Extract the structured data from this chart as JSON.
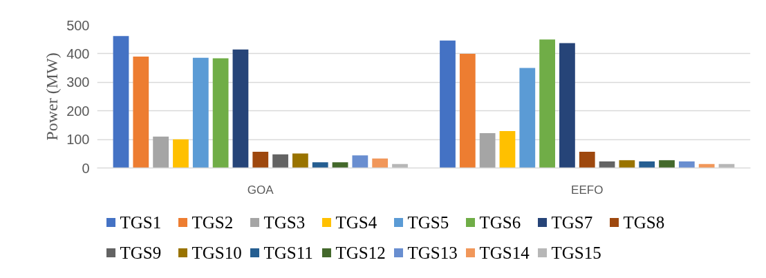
{
  "chart_data": {
    "type": "bar",
    "ylabel": "Power (MW)",
    "categories": [
      "GOA",
      "EEFO"
    ],
    "series": [
      {
        "name": "TGS1",
        "color": "#4472c4",
        "values": [
          462,
          446
        ]
      },
      {
        "name": "TGS2",
        "color": "#ed7d31",
        "values": [
          390,
          400
        ]
      },
      {
        "name": "TGS3",
        "color": "#a5a5a5",
        "values": [
          110,
          122
        ]
      },
      {
        "name": "TGS4",
        "color": "#ffc000",
        "values": [
          100,
          129
        ]
      },
      {
        "name": "TGS5",
        "color": "#5b9bd5",
        "values": [
          386,
          350
        ]
      },
      {
        "name": "TGS6",
        "color": "#70ad47",
        "values": [
          384,
          450
        ]
      },
      {
        "name": "TGS7",
        "color": "#264478",
        "values": [
          415,
          437
        ]
      },
      {
        "name": "TGS8",
        "color": "#9e480e",
        "values": [
          57,
          57
        ]
      },
      {
        "name": "TGS9",
        "color": "#636363",
        "values": [
          48,
          23
        ]
      },
      {
        "name": "TGS10",
        "color": "#997300",
        "values": [
          51,
          27
        ]
      },
      {
        "name": "TGS11",
        "color": "#255e91",
        "values": [
          20,
          23
        ]
      },
      {
        "name": "TGS12",
        "color": "#43682b",
        "values": [
          20,
          27
        ]
      },
      {
        "name": "TGS13",
        "color": "#698ed0",
        "values": [
          44,
          23
        ]
      },
      {
        "name": "TGS14",
        "color": "#f1975a",
        "values": [
          33,
          14
        ]
      },
      {
        "name": "TGS15",
        "color": "#b7b7b7",
        "values": [
          14,
          14
        ]
      }
    ],
    "ylim": [
      0,
      500
    ],
    "yticks": [
      0,
      100,
      200,
      300,
      400,
      500
    ],
    "grid": "y",
    "legend": "bottom"
  }
}
